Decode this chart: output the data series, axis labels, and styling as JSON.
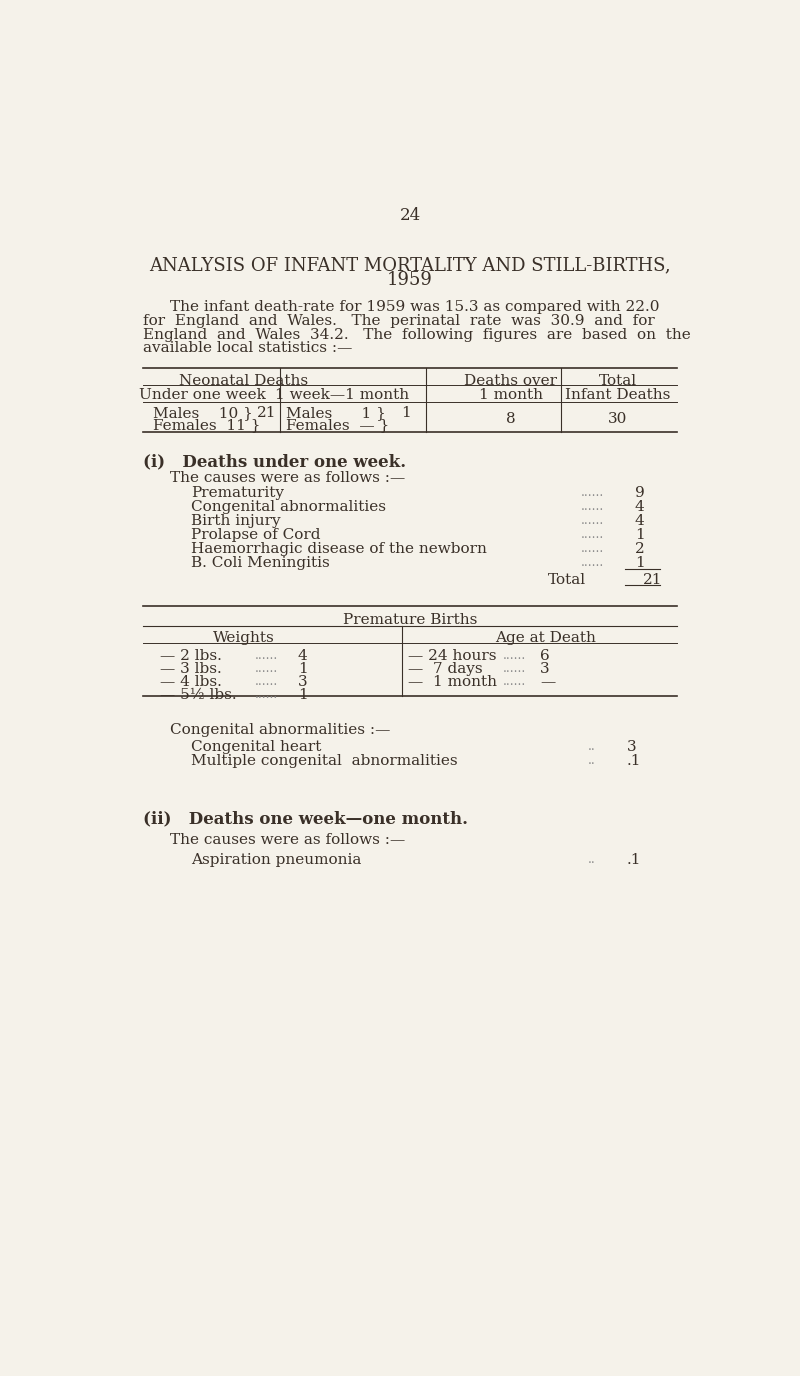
{
  "bg_color": "#f5f2ea",
  "text_color": "#3a3028",
  "dot_color": "#888888",
  "page_number": "24",
  "title_line1": "ANALYSIS OF INFANT MORTALITY AND STILL-BIRTHS,",
  "title_line2": "1959",
  "intro_lines": [
    "The infant death-rate for 1959 was 15.3 as compared with 22.0",
    "for  England  and  Wales.   The  perinatal  rate  was  30.9  and  for",
    "England  and  Wales  34.2.   The  following  figures  are  based  on  the",
    "available local statistics :—"
  ],
  "table1_header_row1_col1": "Neonatal Deaths",
  "table1_header_row1_col2": "Deaths over",
  "table1_header_row1_col3": "Total",
  "table1_header_row2_col1a": "Under one week",
  "table1_header_row2_col1b": "1 week—1 month",
  "table1_header_row2_col2": "1 month",
  "table1_header_row2_col3": "Infant Deaths",
  "table1_data_col2": "8",
  "table1_data_col3": "30",
  "section_i_heading": "(i)   Deaths under one week.",
  "section_i_intro": "The causes were as follows :—",
  "causes_i": [
    [
      "Prematurity",
      "9"
    ],
    [
      "Congenital abnormalities",
      "4"
    ],
    [
      "Birth injury",
      "4"
    ],
    [
      "Prolapse of Cord",
      "1"
    ],
    [
      "Haemorrhagic disease of the newborn",
      "2"
    ],
    [
      "B. Coli Meningitis",
      "1"
    ]
  ],
  "total_i_label": "Total",
  "total_i_value": "21",
  "premature_births_header": "Premature Births",
  "weights_header": "Weights",
  "age_header": "Age at Death",
  "weights_data": [
    [
      "— 2 lbs.",
      "4"
    ],
    [
      "— 3 lbs.",
      "1"
    ],
    [
      "— 4 lbs.",
      "3"
    ],
    [
      "— 5½ lbs.",
      "1"
    ]
  ],
  "age_data": [
    [
      "— 24 hours",
      "6"
    ],
    [
      "—  7 days",
      "3"
    ],
    [
      "—  1 month",
      "—"
    ]
  ],
  "congenital_header": "Congenital abnormalities :—",
  "congenital_data": [
    [
      "Congenital heart",
      "3"
    ],
    [
      "Multiple congenital  abnormalities",
      ".1"
    ]
  ],
  "section_ii_heading": "(ii)   Deaths one week—one month.",
  "section_ii_intro": "The causes were as follows :—",
  "causes_ii": [
    [
      "Aspiration pneumonia",
      ".1"
    ]
  ]
}
